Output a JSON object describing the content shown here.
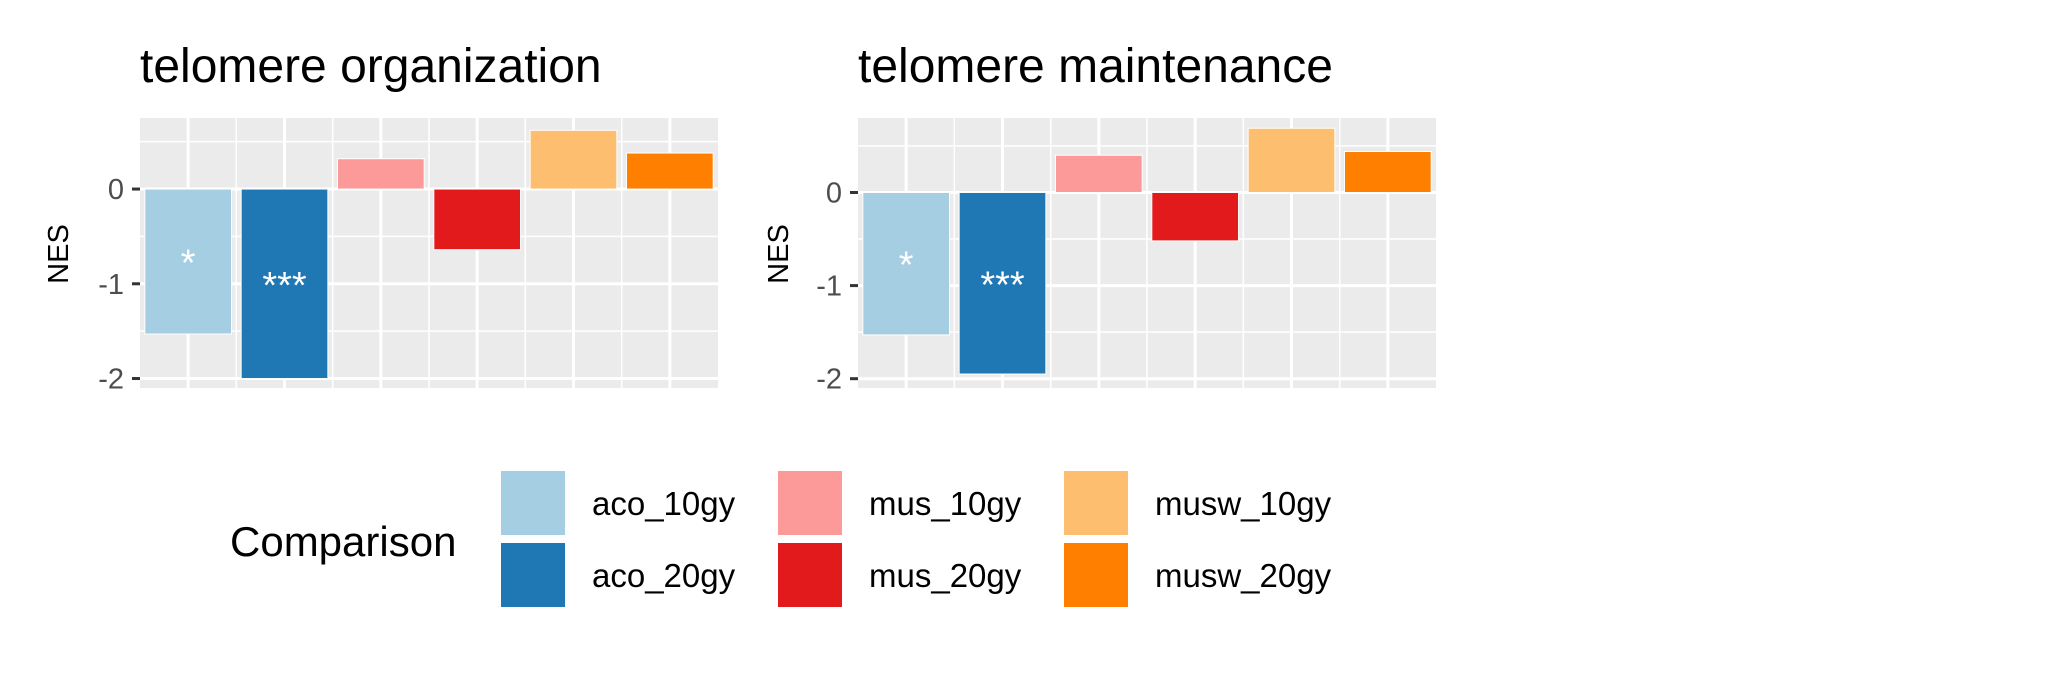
{
  "chart_data": [
    {
      "type": "bar",
      "title": "telomere organization",
      "ylabel": "NES",
      "xlabel": "",
      "ylim": [
        -2.1,
        0.75
      ],
      "yticks": [
        0,
        -1,
        -2
      ],
      "ytick_labels": [
        "0",
        "-1",
        "-2"
      ],
      "categories": [
        "aco_10gy",
        "aco_20gy",
        "mus_10gy",
        "mus_20gy",
        "musw_10gy",
        "musw_20gy"
      ],
      "values": [
        -1.53,
        -2.0,
        0.32,
        -0.64,
        0.62,
        0.38
      ],
      "significance": [
        "*",
        "***",
        "",
        "",
        "",
        ""
      ],
      "grid": true
    },
    {
      "type": "bar",
      "title": "telomere maintenance",
      "ylabel": "NES",
      "xlabel": "",
      "ylim": [
        -2.1,
        0.8
      ],
      "yticks": [
        0,
        -1,
        -2
      ],
      "ytick_labels": [
        "0",
        "-1",
        "-2"
      ],
      "categories": [
        "aco_10gy",
        "aco_20gy",
        "mus_10gy",
        "mus_20gy",
        "musw_10gy",
        "musw_20gy"
      ],
      "values": [
        -1.53,
        -1.95,
        0.4,
        -0.52,
        0.69,
        0.44
      ],
      "significance": [
        "*",
        "***",
        "",
        "",
        "",
        ""
      ],
      "grid": true
    }
  ],
  "legend": {
    "title": "Comparison",
    "placement": "bottom",
    "items": [
      {
        "label": "aco_10gy",
        "color": "#A6CEE3"
      },
      {
        "label": "aco_20gy",
        "color": "#1F78B4"
      },
      {
        "label": "mus_10gy",
        "color": "#FB9A99"
      },
      {
        "label": "mus_20gy",
        "color": "#E31A1C"
      },
      {
        "label": "musw_10gy",
        "color": "#FDBF6F"
      },
      {
        "label": "musw_20gy",
        "color": "#FF7F00"
      }
    ]
  },
  "colors": {
    "panel_background": "#EBEBEB",
    "grid": "#FFFFFF",
    "bar_outline": "#FFFFFF",
    "tick_text": "#4D4D4D"
  }
}
